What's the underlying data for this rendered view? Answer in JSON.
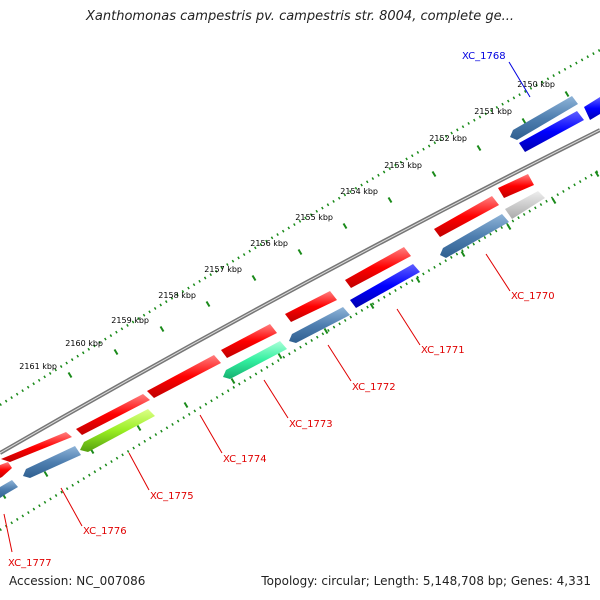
{
  "title": "Xanthomonas campestris pv. campestris str. 8004, complete ge...",
  "accession": "Accession: NC_007086",
  "summary": "Topology: circular; Length: 5,148,708 bp; Genes: 4,331",
  "kbp_labels": [
    "2150 kbp",
    "2151 kbp",
    "2152 kbp",
    "2153 kbp",
    "2154 kbp",
    "2155 kbp",
    "2156 kbp",
    "2157 kbp",
    "2158 kbp",
    "2159 kbp",
    "2160 kbp",
    "2161 kbp"
  ],
  "gene_labels": [
    "XC_1768",
    "XC_1770",
    "XC_1771",
    "XC_1772",
    "XC_1773",
    "XC_1774",
    "XC_1775",
    "XC_1776",
    "XC_1777"
  ],
  "colors": {
    "red": "#ff0000",
    "blue": "#0000ff",
    "steel": "#4f7fb0",
    "gray": "#c8c8c8",
    "teal": "#33f0a0",
    "lime": "#99ee22",
    "ticks": "#1a8a1a",
    "backbone": "#777777",
    "label_red": "#e00000",
    "label_blue": "#0000e0"
  }
}
